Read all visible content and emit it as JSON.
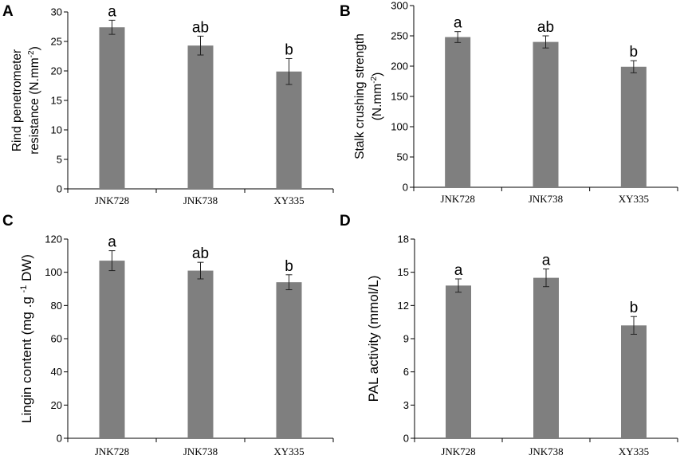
{
  "chart_data": [
    {
      "panel": "A",
      "type": "bar",
      "title": "",
      "xlabel": "",
      "ylabel": [
        "Rind penetrometer",
        "resistance (N.mm",
        "-2",
        ")"
      ],
      "categories": [
        "JNK728",
        "JNK738",
        "XY335"
      ],
      "values": [
        27.4,
        24.3,
        19.9
      ],
      "errors": [
        1.2,
        1.6,
        2.2
      ],
      "significance": [
        "a",
        "ab",
        "b"
      ],
      "ylim": [
        0,
        30
      ],
      "yticks": [
        0,
        5,
        10,
        15,
        20,
        25,
        30
      ],
      "grid": false
    },
    {
      "panel": "B",
      "type": "bar",
      "title": "",
      "xlabel": "",
      "ylabel": [
        "Stalk crushing strength",
        "(N.mm",
        "-2",
        ")"
      ],
      "categories": [
        "JNK728",
        "JNK738",
        "XY335"
      ],
      "values": [
        248,
        240,
        199
      ],
      "errors": [
        9,
        10,
        10
      ],
      "significance": [
        "a",
        "ab",
        "b"
      ],
      "ylim": [
        0,
        300
      ],
      "yticks": [
        0,
        50,
        100,
        150,
        200,
        250,
        300
      ],
      "grid": false
    },
    {
      "panel": "C",
      "type": "bar",
      "title": "",
      "xlabel": "",
      "ylabel": [
        "Lingin content (mg .g ",
        "-1",
        " DW)"
      ],
      "categories": [
        "JNK728",
        "JNK738",
        "XY335"
      ],
      "values": [
        107,
        101,
        94
      ],
      "errors": [
        6,
        5,
        4.5
      ],
      "significance": [
        "a",
        "ab",
        "b"
      ],
      "ylim": [
        0,
        120
      ],
      "yticks": [
        0,
        20,
        40,
        60,
        80,
        100,
        120
      ],
      "grid": false
    },
    {
      "panel": "D",
      "type": "bar",
      "title": "",
      "xlabel": "",
      "ylabel": [
        "PAL activity (mmol/L)"
      ],
      "categories": [
        "JNK728",
        "JNK738",
        "XY335"
      ],
      "values": [
        13.8,
        14.5,
        10.2
      ],
      "errors": [
        0.6,
        0.8,
        0.8
      ],
      "significance": [
        "a",
        "a",
        "b"
      ],
      "ylim": [
        0,
        18
      ],
      "yticks": [
        0,
        3,
        6,
        9,
        12,
        15,
        18
      ],
      "grid": false
    }
  ],
  "colors": {
    "bar": "#7f7f7f",
    "axis": "#000000"
  }
}
